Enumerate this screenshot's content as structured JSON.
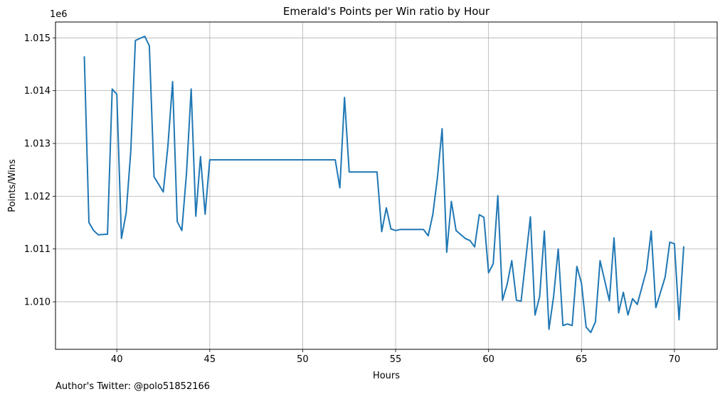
{
  "chart_data": {
    "type": "line",
    "title": "Emerald's Points per Win ratio by Hour",
    "xlabel": "Hours",
    "ylabel": "Points/Wins",
    "y_offset_label": "1e6",
    "xlim": [
      36.7,
      72.3
    ],
    "ylim": [
      1009.1,
      1015.3
    ],
    "x_ticks": [
      40,
      45,
      50,
      55,
      60,
      65,
      70
    ],
    "x_tick_labels": [
      "40",
      "45",
      "50",
      "55",
      "60",
      "65",
      "70"
    ],
    "y_ticks": [
      1010,
      1011,
      1012,
      1013,
      1014,
      1015
    ],
    "y_tick_labels": [
      "1.010",
      "1.011",
      "1.012",
      "1.013",
      "1.014",
      "1.015"
    ],
    "grid": true,
    "color": "#1f77b4",
    "series": [
      {
        "x": [
          38.25,
          38.5,
          38.75,
          39.0,
          39.5,
          39.75,
          40.0,
          40.25,
          40.5,
          40.75,
          41.0,
          41.5,
          41.75,
          42.0,
          42.5,
          42.75,
          43.0,
          43.25,
          43.5,
          43.75,
          44.0,
          44.25,
          44.5,
          44.75,
          45.0,
          51.75,
          52.0,
          52.25,
          52.5,
          54.0,
          54.25,
          54.5,
          54.75,
          55.0,
          55.25,
          56.5,
          56.75,
          57.0,
          57.25,
          57.5,
          57.75,
          58.0,
          58.25,
          58.75,
          59.0,
          59.25,
          59.5,
          59.75,
          60.0,
          60.25,
          60.5,
          60.75,
          61.0,
          61.25,
          61.5,
          61.75,
          62.0,
          62.25,
          62.5,
          62.75,
          63.0,
          63.25,
          63.5,
          63.75,
          64.0,
          64.25,
          64.5,
          64.75,
          65.0,
          65.25,
          65.5,
          65.75,
          66.0,
          66.5,
          66.75,
          67.0,
          67.25,
          67.5,
          67.75,
          68.0,
          68.5,
          68.75,
          69.0,
          69.5,
          69.75,
          70.0,
          70.25,
          70.5
        ],
        "y": [
          1014.65,
          1011.5,
          1011.35,
          1011.27,
          1011.28,
          1014.03,
          1013.93,
          1011.2,
          1011.68,
          1012.85,
          1014.95,
          1015.03,
          1014.85,
          1012.37,
          1012.08,
          1012.95,
          1014.17,
          1011.52,
          1011.35,
          1012.45,
          1014.03,
          1011.62,
          1012.75,
          1011.66,
          1012.69,
          1012.69,
          1012.16,
          1013.87,
          1012.46,
          1012.46,
          1011.33,
          1011.78,
          1011.38,
          1011.35,
          1011.37,
          1011.37,
          1011.25,
          1011.65,
          1012.35,
          1013.28,
          1010.94,
          1011.9,
          1011.35,
          1011.2,
          1011.16,
          1011.04,
          1011.65,
          1011.6,
          1010.55,
          1010.72,
          1012.01,
          1010.03,
          1010.33,
          1010.78,
          1010.03,
          1010.01,
          1010.8,
          1011.61,
          1009.75,
          1010.1,
          1011.34,
          1009.48,
          1010.1,
          1011.0,
          1009.55,
          1009.58,
          1009.55,
          1010.67,
          1010.35,
          1009.52,
          1009.42,
          1009.62,
          1010.78,
          1010.02,
          1011.21,
          1009.79,
          1010.18,
          1009.75,
          1010.06,
          1009.95,
          1010.6,
          1011.34,
          1009.89,
          1010.47,
          1011.13,
          1011.1,
          1009.66,
          1011.05
        ]
      }
    ]
  },
  "footer": {
    "author": "Author's Twitter: @polo51852166"
  }
}
